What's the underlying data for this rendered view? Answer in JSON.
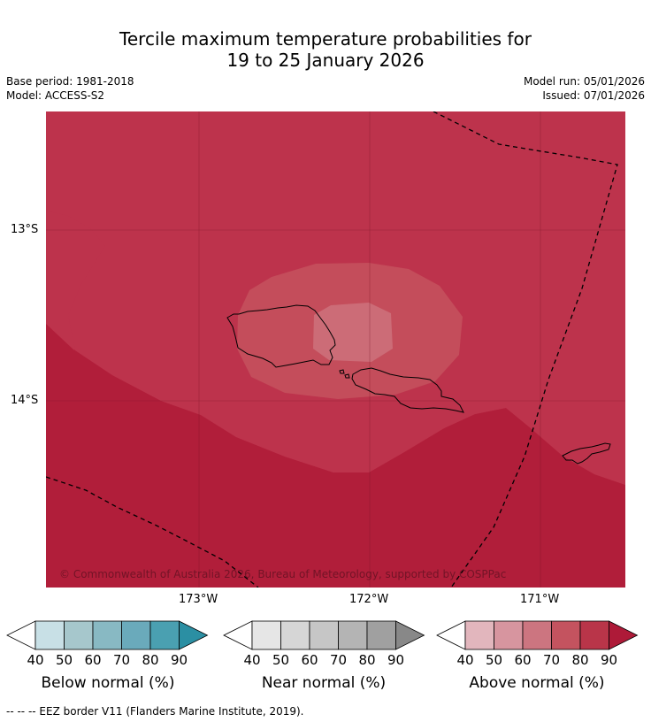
{
  "title": {
    "line1": "Tercile maximum temperature probabilities for",
    "line2": "19 to 25 January 2026"
  },
  "meta": {
    "base_period": "Base period: 1981-2018",
    "model": "Model: ACCESS-S2",
    "model_run": "Model run: 05/01/2026",
    "issued": "Issued: 07/01/2026"
  },
  "map": {
    "lat_labels": [
      "13°S",
      "14°S"
    ],
    "lon_labels": [
      "173°W",
      "172°W",
      "171°W"
    ],
    "copyright": "© Commonwealth of Australia 2026, Bureau of Meteorology, supported by COSPPac",
    "colors": {
      "above_90": "#b11e3a",
      "above_80": "#bd334c",
      "above_70": "#c44d5b",
      "above_60": "#cc6c77"
    }
  },
  "colorbars": [
    {
      "label": "Below normal (%)",
      "ticks": [
        "40",
        "50",
        "60",
        "70",
        "80",
        "90"
      ],
      "colors": [
        "#ffffff",
        "#c8e0e6",
        "#a6c7cc",
        "#88b9c3",
        "#6aaabb",
        "#4aa0b1",
        "#2b8fa3"
      ]
    },
    {
      "label": "Near normal (%)",
      "ticks": [
        "40",
        "50",
        "60",
        "70",
        "80",
        "90"
      ],
      "colors": [
        "#ffffff",
        "#e6e6e6",
        "#d6d6d6",
        "#c6c6c6",
        "#b4b4b4",
        "#a0a0a0",
        "#888888"
      ]
    },
    {
      "label": "Above normal (%)",
      "ticks": [
        "40",
        "50",
        "60",
        "70",
        "80",
        "90"
      ],
      "colors": [
        "#ffffff",
        "#e2b6bd",
        "#d7959f",
        "#cc7580",
        "#c4535f",
        "#b93549",
        "#ae1a38"
      ]
    }
  ],
  "footer": "-- -- -- EEZ border V11 (Flanders Marine Institute, 2019)."
}
